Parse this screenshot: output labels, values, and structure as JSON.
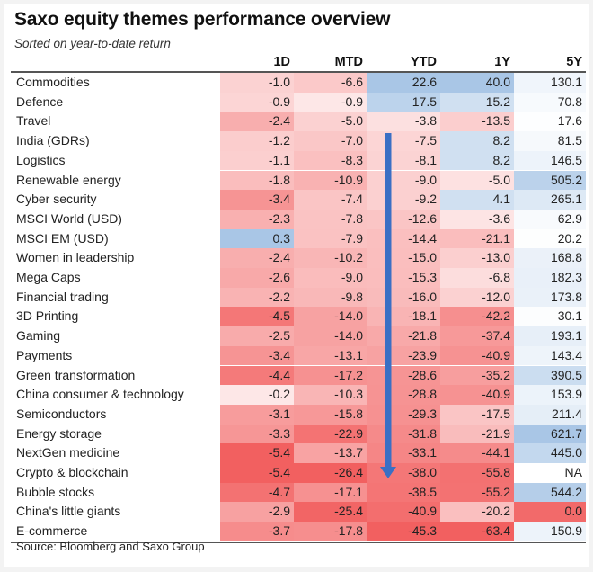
{
  "title": "Saxo equity themes performance overview",
  "subtitle": "Sorted on year-to-date return",
  "source": "Source: Bloomberg and Saxo Group",
  "colors": {
    "negative": "#f26060",
    "positive": "#a9c6e6",
    "neutral": "#ffffff",
    "arrow": "#3a6fc4"
  },
  "chart_data": {
    "type": "heatmap",
    "title": "Saxo equity themes performance overview",
    "subtitle": "Sorted on year-to-date return",
    "columns": [
      "1D",
      "MTD",
      "YTD",
      "1Y",
      "5Y"
    ],
    "annotation": "downward arrow over YTD column indicating descending sort",
    "rows": [
      {
        "name": "Commodities",
        "values": [
          "-1.0",
          "-6.6",
          "22.6",
          "40.0",
          "130.1"
        ]
      },
      {
        "name": "Defence",
        "values": [
          "-0.9",
          "-0.9",
          "17.5",
          "15.2",
          "70.8"
        ]
      },
      {
        "name": "Travel",
        "values": [
          "-2.4",
          "-5.0",
          "-3.8",
          "-13.5",
          "17.6"
        ]
      },
      {
        "name": "India (GDRs)",
        "values": [
          "-1.2",
          "-7.0",
          "-7.5",
          "8.2",
          "81.5"
        ]
      },
      {
        "name": "Logistics",
        "values": [
          "-1.1",
          "-8.3",
          "-8.1",
          "8.2",
          "146.5"
        ]
      },
      {
        "name": "Renewable energy",
        "values": [
          "-1.8",
          "-10.9",
          "-9.0",
          "-5.0",
          "505.2"
        ]
      },
      {
        "name": "Cyber security",
        "values": [
          "-3.4",
          "-7.4",
          "-9.2",
          "4.1",
          "265.1"
        ]
      },
      {
        "name": "MSCI World (USD)",
        "values": [
          "-2.3",
          "-7.8",
          "-12.6",
          "-3.6",
          "62.9"
        ]
      },
      {
        "name": "MSCI EM (USD)",
        "values": [
          "0.3",
          "-7.9",
          "-14.4",
          "-21.1",
          "20.2"
        ]
      },
      {
        "name": "Women in leadership",
        "values": [
          "-2.4",
          "-10.2",
          "-15.0",
          "-13.0",
          "168.8"
        ]
      },
      {
        "name": "Mega Caps",
        "values": [
          "-2.6",
          "-9.0",
          "-15.3",
          "-6.8",
          "182.3"
        ]
      },
      {
        "name": "Financial trading",
        "values": [
          "-2.2",
          "-9.8",
          "-16.0",
          "-12.0",
          "173.8"
        ]
      },
      {
        "name": "3D Printing",
        "values": [
          "-4.5",
          "-14.0",
          "-18.1",
          "-42.2",
          "30.1"
        ]
      },
      {
        "name": "Gaming",
        "values": [
          "-2.5",
          "-14.0",
          "-21.8",
          "-37.4",
          "193.1"
        ]
      },
      {
        "name": "Payments",
        "values": [
          "-3.4",
          "-13.1",
          "-23.9",
          "-40.9",
          "143.4"
        ]
      },
      {
        "name": "Green transformation",
        "values": [
          "-4.4",
          "-17.2",
          "-28.6",
          "-35.2",
          "390.5"
        ]
      },
      {
        "name": "China consumer & technology",
        "values": [
          "-0.2",
          "-10.3",
          "-28.8",
          "-40.9",
          "153.9"
        ]
      },
      {
        "name": "Semiconductors",
        "values": [
          "-3.1",
          "-15.8",
          "-29.3",
          "-17.5",
          "211.4"
        ]
      },
      {
        "name": "Energy storage",
        "values": [
          "-3.3",
          "-22.9",
          "-31.8",
          "-21.9",
          "621.7"
        ]
      },
      {
        "name": "NextGen medicine",
        "values": [
          "-5.4",
          "-13.7",
          "-33.1",
          "-44.1",
          "445.0"
        ]
      },
      {
        "name": "Crypto & blockchain",
        "values": [
          "-5.4",
          "-26.4",
          "-38.0",
          "-55.8",
          "NA"
        ]
      },
      {
        "name": "Bubble stocks",
        "values": [
          "-4.7",
          "-17.1",
          "-38.5",
          "-55.2",
          "544.2"
        ]
      },
      {
        "name": "China's little giants",
        "values": [
          "-2.9",
          "-25.4",
          "-40.9",
          "-20.2",
          "0.0"
        ]
      },
      {
        "name": "E-commerce",
        "values": [
          "-3.7",
          "-17.8",
          "-45.3",
          "-63.4",
          "150.9"
        ]
      }
    ]
  }
}
